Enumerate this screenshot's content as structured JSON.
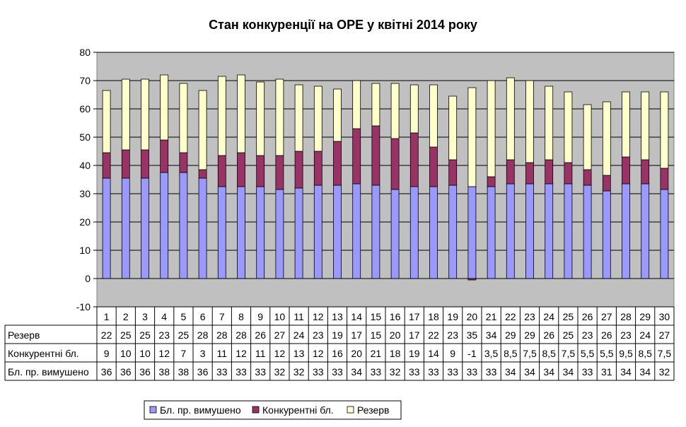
{
  "chart_data": {
    "type": "bar",
    "stacked": true,
    "title": "Стан конкуренції на ОРЕ  у квітні 2014 року",
    "categories": [
      "1",
      "2",
      "3",
      "4",
      "5",
      "6",
      "7",
      "8",
      "9",
      "10",
      "11",
      "12",
      "13",
      "14",
      "15",
      "16",
      "17",
      "18",
      "19",
      "20",
      "21",
      "22",
      "23",
      "24",
      "25",
      "26",
      "27",
      "28",
      "29",
      "30"
    ],
    "ylim": [
      -10,
      80
    ],
    "yticks": [
      "-10",
      "0",
      "10",
      "20",
      "30",
      "40",
      "50",
      "60",
      "70",
      "80"
    ],
    "grid": true,
    "legend_position": "bottom",
    "series": [
      {
        "name": "Бл. пр. вимушено",
        "color": "#9999ff",
        "values": [
          35.5,
          35.5,
          35.5,
          37.5,
          37.5,
          35.5,
          32.5,
          32.5,
          32.5,
          31.5,
          32,
          33,
          33,
          33.5,
          33,
          31.5,
          32.5,
          32.5,
          33,
          32.5,
          32.5,
          33.5,
          33.5,
          33.5,
          33.5,
          33,
          31,
          33.5,
          33.5,
          31.5
        ],
        "labels": [
          "36",
          "36",
          "36",
          "38",
          "38",
          "36",
          "33",
          "33",
          "33",
          "32",
          "32",
          "33",
          "33",
          "34",
          "33",
          "32",
          "33",
          "33",
          "33",
          "33",
          "33",
          "34",
          "34",
          "34",
          "34",
          "33",
          "31",
          "34",
          "34",
          "32"
        ]
      },
      {
        "name": "Конкурентні бл.",
        "color": "#993366",
        "values": [
          9,
          10,
          10,
          11.5,
          7,
          3,
          11,
          12,
          11,
          12,
          13,
          12,
          15.5,
          19.5,
          21,
          18,
          19,
          14,
          9,
          -0.5,
          3.5,
          8.5,
          7.5,
          8.5,
          7.5,
          5.5,
          5.5,
          9.5,
          8.5,
          7.5
        ],
        "labels": [
          "9",
          "10",
          "10",
          "12",
          "7",
          "3",
          "11",
          "12",
          "11",
          "12",
          "13",
          "12",
          "16",
          "20",
          "21",
          "18",
          "19",
          "14",
          "9",
          "-1",
          "3,5",
          "8,5",
          "7,5",
          "8,5",
          "7,5",
          "5,5",
          "5,5",
          "9,5",
          "8,5",
          "7,5"
        ]
      },
      {
        "name": "Резерв",
        "color": "#ffffcc",
        "values": [
          22,
          25,
          25,
          23,
          24.5,
          28,
          28,
          27.5,
          26,
          27,
          23.5,
          23,
          18.5,
          17,
          15,
          19.5,
          17,
          22,
          22.5,
          35,
          34,
          29,
          29,
          26,
          25,
          23,
          26,
          23,
          24,
          27
        ],
        "labels": [
          "22",
          "25",
          "25",
          "23",
          "25",
          "28",
          "28",
          "28",
          "26",
          "27",
          "24",
          "23",
          "19",
          "17",
          "15",
          "20",
          "17",
          "22",
          "23",
          "35",
          "34",
          "29",
          "29",
          "26",
          "25",
          "23",
          "26",
          "23",
          "24",
          "27"
        ]
      }
    ]
  }
}
